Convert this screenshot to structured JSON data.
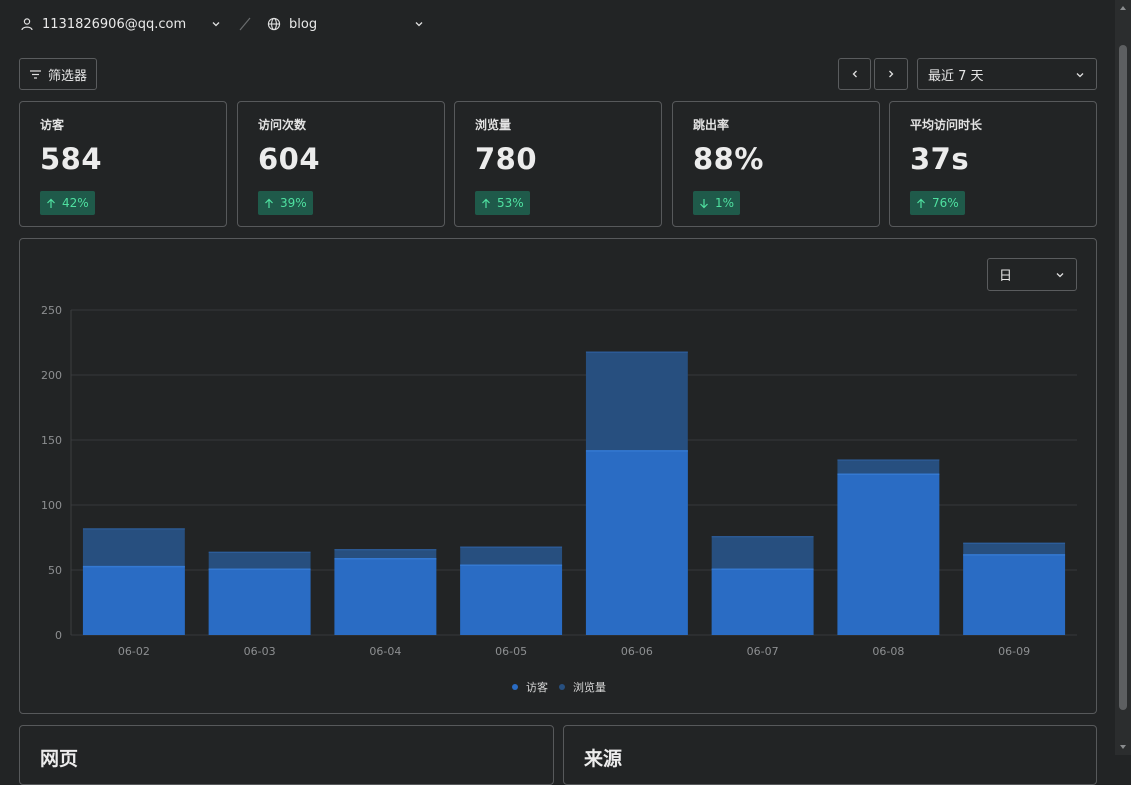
{
  "header": {
    "account": "1131826906@qq.com",
    "website": "blog"
  },
  "toolbar": {
    "filter_label": "筛选器",
    "date_range": "最近 7 天"
  },
  "metrics": [
    {
      "label": "访客",
      "value": "584",
      "change": "42%",
      "direction": "up"
    },
    {
      "label": "访问次数",
      "value": "604",
      "change": "39%",
      "direction": "up"
    },
    {
      "label": "浏览量",
      "value": "780",
      "change": "53%",
      "direction": "up"
    },
    {
      "label": "跳出率",
      "value": "88%",
      "change": "1%",
      "direction": "down"
    },
    {
      "label": "平均访问时长",
      "value": "37s",
      "change": "76%",
      "direction": "up"
    }
  ],
  "unit_select": "日",
  "chart_data": {
    "type": "bar",
    "categories": [
      "06-02",
      "06-03",
      "06-04",
      "06-05",
      "06-06",
      "06-07",
      "06-08",
      "06-09"
    ],
    "series": [
      {
        "name": "访客",
        "values": [
          53,
          51,
          59,
          54,
          142,
          51,
          124,
          62
        ],
        "color": "#2a6cc4"
      },
      {
        "name": "浏览量",
        "values": [
          82,
          64,
          66,
          68,
          218,
          76,
          135,
          71
        ],
        "color": "#274f7f"
      }
    ],
    "ylim": [
      0,
      250
    ],
    "yticks": [
      0,
      50,
      100,
      150,
      200,
      250
    ],
    "grid": true,
    "legend": "bottom-center"
  },
  "panels": {
    "pages_title": "网页",
    "referrers_title": "来源"
  },
  "colors": {
    "background": "#222425",
    "border": "#57595b",
    "badge_bg": "#1f5a4a",
    "badge_text": "#4fe0a0",
    "visitors": "#2a6cc4",
    "pageviews": "#274f7f"
  }
}
